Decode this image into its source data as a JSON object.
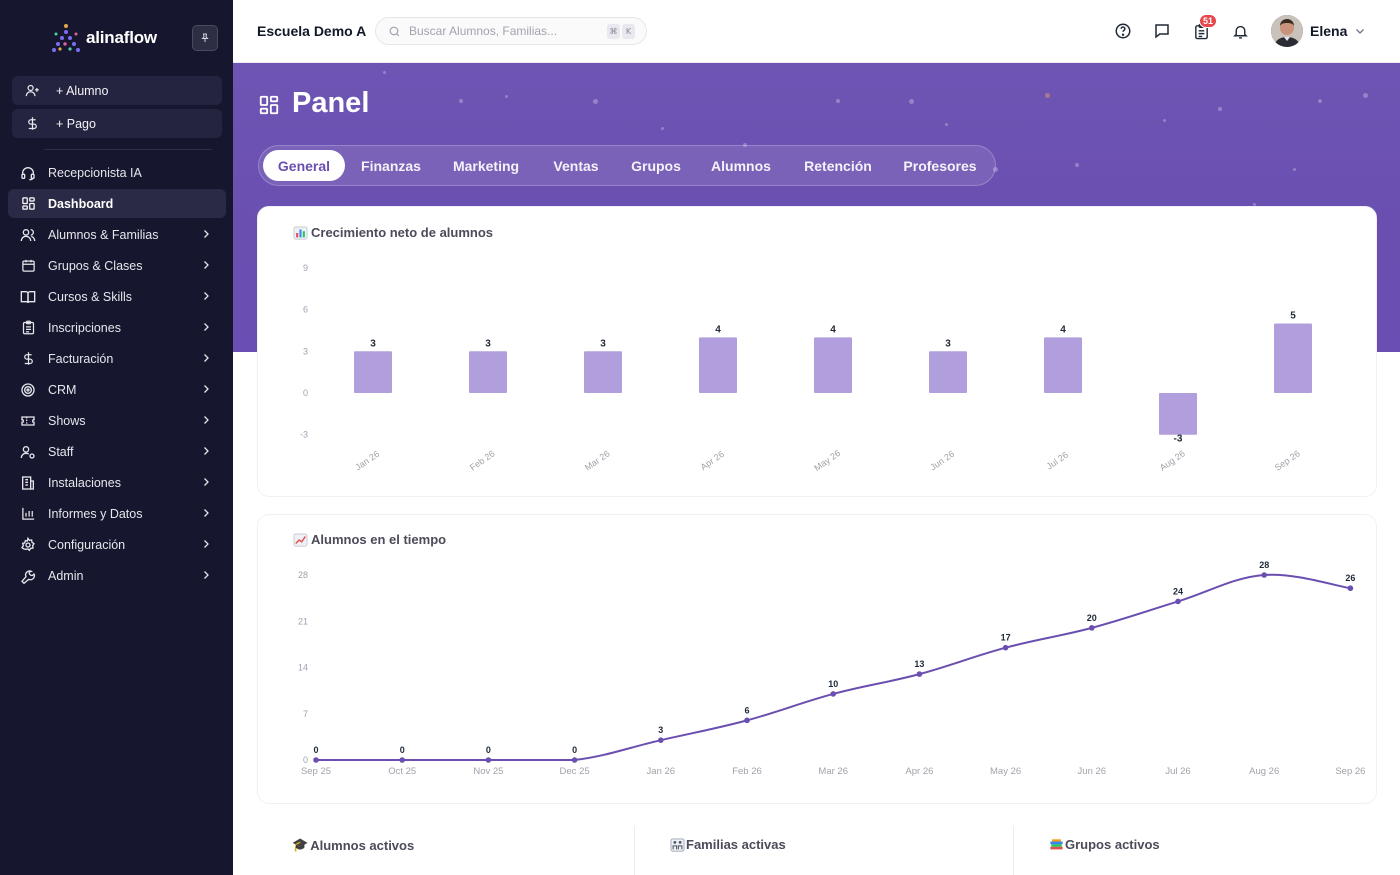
{
  "brand": {
    "name": "alinaflow"
  },
  "quick_actions": [
    {
      "label": "+ Alumno",
      "icon": "user-plus-icon"
    },
    {
      "label": "+ Pago",
      "icon": "dollar-icon"
    }
  ],
  "sidebar": {
    "items": [
      {
        "label": "Recepcionista IA",
        "icon": "headset-icon",
        "has_submenu": false,
        "active": false
      },
      {
        "label": "Dashboard",
        "icon": "grid-icon",
        "has_submenu": false,
        "active": true
      },
      {
        "label": "Alumnos & Familias",
        "icon": "users-icon",
        "has_submenu": true,
        "active": false
      },
      {
        "label": "Grupos & Clases",
        "icon": "calendar-icon",
        "has_submenu": true,
        "active": false
      },
      {
        "label": "Cursos & Skills",
        "icon": "book-icon",
        "has_submenu": true,
        "active": false
      },
      {
        "label": "Inscripciones",
        "icon": "clipboard-icon",
        "has_submenu": true,
        "active": false
      },
      {
        "label": "Facturación",
        "icon": "dollar-icon",
        "has_submenu": true,
        "active": false
      },
      {
        "label": "CRM",
        "icon": "target-icon",
        "has_submenu": true,
        "active": false
      },
      {
        "label": "Shows",
        "icon": "ticket-icon",
        "has_submenu": true,
        "active": false
      },
      {
        "label": "Staff",
        "icon": "user-cog-icon",
        "has_submenu": true,
        "active": false
      },
      {
        "label": "Instalaciones",
        "icon": "building-icon",
        "has_submenu": true,
        "active": false
      },
      {
        "label": "Informes y Datos",
        "icon": "bar-chart-icon",
        "has_submenu": true,
        "active": false
      },
      {
        "label": "Configuración",
        "icon": "gear-icon",
        "has_submenu": true,
        "active": false
      },
      {
        "label": "Admin",
        "icon": "wrench-icon",
        "has_submenu": true,
        "active": false
      }
    ]
  },
  "topbar": {
    "school": "Escuela Demo A",
    "search_placeholder": "Buscar Alumnos, Familias...",
    "shortcut_keys": [
      "⌘",
      "K"
    ],
    "tasks_badge": "51",
    "user_name": "Elena"
  },
  "page": {
    "title": "Panel",
    "tabs": [
      "General",
      "Finanzas",
      "Marketing",
      "Ventas",
      "Grupos",
      "Alumnos",
      "Retención",
      "Profesores"
    ],
    "active_tab": "General"
  },
  "colors": {
    "accent": "#6a4fb0",
    "bar": "#b09fdc",
    "line": "#6a4fb0",
    "sidebar_bg": "#16162e",
    "badge": "#e5484d"
  },
  "charts": {
    "net_growth": {
      "title": "Crecimiento neto de alumnos",
      "emoji": "bar-chart-emoji"
    },
    "students_over_time": {
      "title": "Alumnos en el tiempo",
      "emoji": "trend-up-emoji"
    }
  },
  "chart_data": [
    {
      "type": "bar",
      "title": "Crecimiento neto de alumnos",
      "categories": [
        "Jan 26",
        "Feb 26",
        "Mar 26",
        "Apr 26",
        "May 26",
        "Jun 26",
        "Jul 26",
        "Aug 26",
        "Sep 26"
      ],
      "values": [
        3,
        3,
        3,
        4,
        4,
        3,
        4,
        -3,
        5
      ],
      "yticks": [
        "9",
        "6",
        "3",
        "0",
        "-3"
      ],
      "ylim": [
        -3,
        9
      ],
      "grid": false
    },
    {
      "type": "line",
      "title": "Alumnos en el tiempo",
      "categories": [
        "Sep 25",
        "Oct 25",
        "Nov 25",
        "Dec 25",
        "Jan 26",
        "Feb 26",
        "Mar 26",
        "Apr 26",
        "May 26",
        "Jun 26",
        "Jul 26",
        "Aug 26",
        "Sep 26"
      ],
      "values": [
        0,
        0,
        0,
        0,
        3,
        6,
        10,
        13,
        17,
        20,
        24,
        28,
        26
      ],
      "yticks": [
        "28",
        "21",
        "14",
        "7",
        "0"
      ],
      "ylim": [
        0,
        28
      ],
      "grid": false
    }
  ],
  "stats": [
    {
      "title": "Alumnos activos",
      "emoji": "graduation-cap-emoji"
    },
    {
      "title": "Familias activas",
      "emoji": "family-emoji"
    },
    {
      "title": "Grupos activos",
      "emoji": "books-emoji"
    }
  ]
}
